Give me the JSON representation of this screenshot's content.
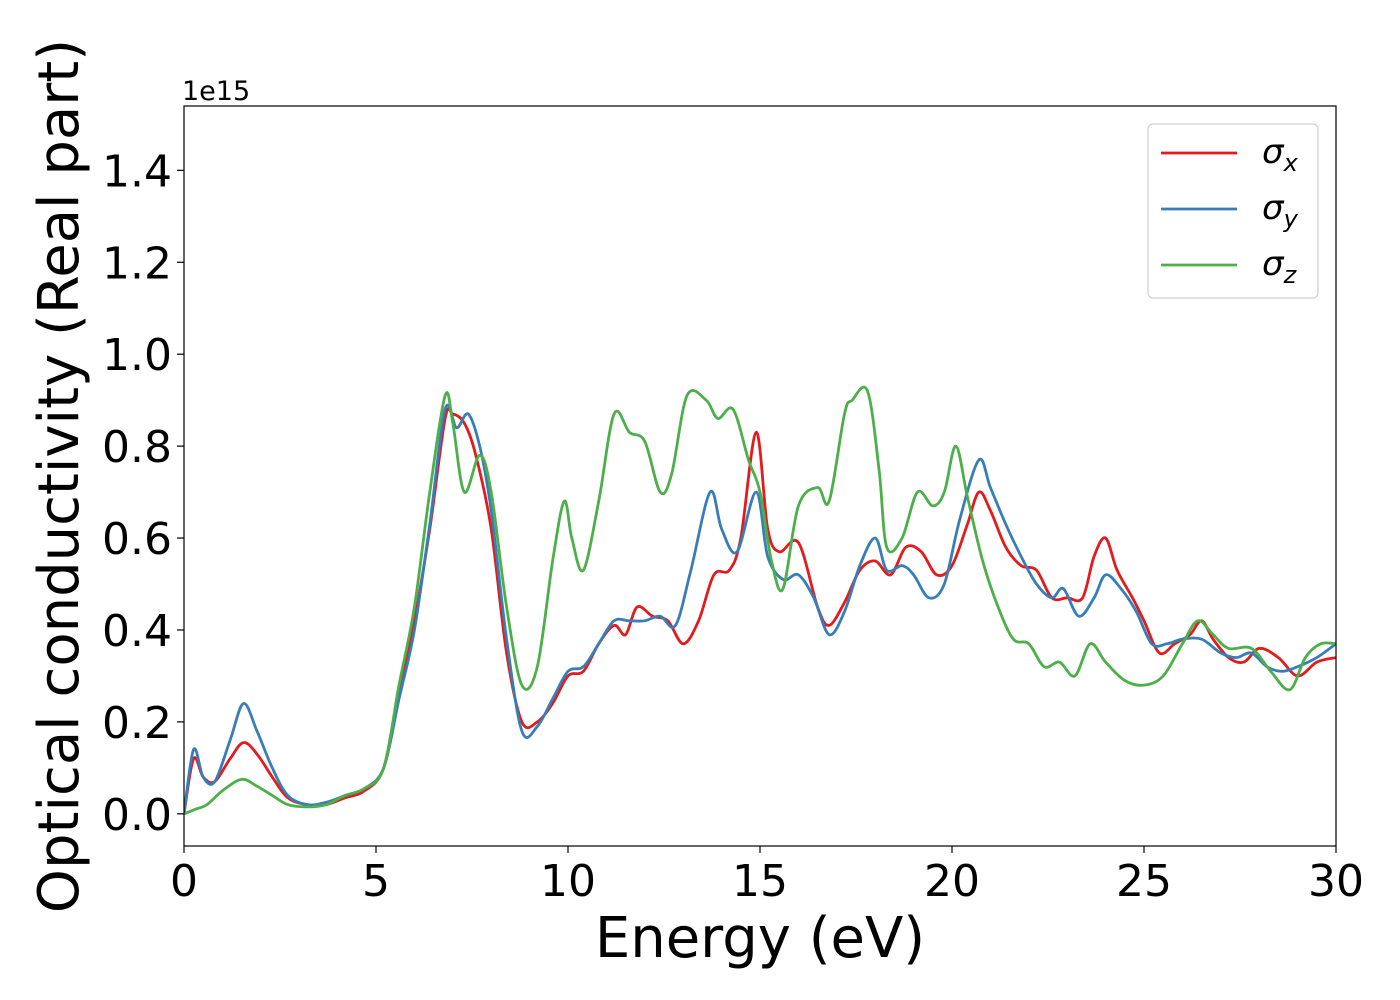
{
  "chart_data": {
    "type": "line",
    "title": "",
    "xlabel": "Energy (eV)",
    "ylabel": "Optical conductivity (Real part)",
    "y_offset_label": "1e15",
    "xlim": [
      0,
      30
    ],
    "ylim": [
      -0.07,
      1.54
    ],
    "x_ticks": [
      0,
      5,
      10,
      15,
      20,
      25,
      30
    ],
    "x_tick_labels": [
      "0",
      "5",
      "10",
      "15",
      "20",
      "25",
      "30"
    ],
    "y_ticks": [
      0.0,
      0.2,
      0.4,
      0.6,
      0.8,
      1.0,
      1.2,
      1.4
    ],
    "y_tick_labels": [
      "0.0",
      "0.2",
      "0.4",
      "0.6",
      "0.8",
      "1.0",
      "1.2",
      "1.4"
    ],
    "grid": false,
    "legend_position": "top-right",
    "series": [
      {
        "name": "σx",
        "legend_symbol": "σ",
        "legend_sub": "x",
        "color": "#e41a1c",
        "points": [
          [
            0,
            0
          ],
          [
            0.25,
            0.12
          ],
          [
            0.5,
            0.08
          ],
          [
            0.8,
            0.07
          ],
          [
            1.2,
            0.12
          ],
          [
            1.55,
            0.155
          ],
          [
            1.9,
            0.13
          ],
          [
            2.3,
            0.08
          ],
          [
            2.7,
            0.035
          ],
          [
            3.2,
            0.02
          ],
          [
            3.7,
            0.02
          ],
          [
            4.2,
            0.035
          ],
          [
            4.7,
            0.05
          ],
          [
            5.2,
            0.1
          ],
          [
            5.6,
            0.27
          ],
          [
            6.0,
            0.42
          ],
          [
            6.4,
            0.62
          ],
          [
            6.8,
            0.86
          ],
          [
            7.0,
            0.87
          ],
          [
            7.3,
            0.85
          ],
          [
            7.6,
            0.78
          ],
          [
            8.0,
            0.62
          ],
          [
            8.4,
            0.35
          ],
          [
            8.8,
            0.2
          ],
          [
            9.2,
            0.2
          ],
          [
            9.6,
            0.24
          ],
          [
            10.0,
            0.3
          ],
          [
            10.4,
            0.31
          ],
          [
            10.8,
            0.37
          ],
          [
            11.2,
            0.41
          ],
          [
            11.5,
            0.39
          ],
          [
            11.8,
            0.45
          ],
          [
            12.2,
            0.43
          ],
          [
            12.6,
            0.42
          ],
          [
            13.0,
            0.37
          ],
          [
            13.4,
            0.42
          ],
          [
            13.8,
            0.52
          ],
          [
            14.2,
            0.53
          ],
          [
            14.5,
            0.6
          ],
          [
            14.9,
            0.83
          ],
          [
            15.2,
            0.62
          ],
          [
            15.5,
            0.57
          ],
          [
            16.0,
            0.59
          ],
          [
            16.5,
            0.45
          ],
          [
            16.8,
            0.41
          ],
          [
            17.2,
            0.46
          ],
          [
            17.6,
            0.53
          ],
          [
            18.0,
            0.55
          ],
          [
            18.4,
            0.52
          ],
          [
            18.8,
            0.58
          ],
          [
            19.2,
            0.57
          ],
          [
            19.6,
            0.52
          ],
          [
            20.0,
            0.54
          ],
          [
            20.4,
            0.63
          ],
          [
            20.7,
            0.7
          ],
          [
            21.0,
            0.66
          ],
          [
            21.4,
            0.58
          ],
          [
            21.8,
            0.54
          ],
          [
            22.2,
            0.53
          ],
          [
            22.6,
            0.47
          ],
          [
            23.0,
            0.47
          ],
          [
            23.4,
            0.47
          ],
          [
            23.7,
            0.56
          ],
          [
            24.0,
            0.6
          ],
          [
            24.3,
            0.53
          ],
          [
            24.7,
            0.47
          ],
          [
            25.0,
            0.42
          ],
          [
            25.4,
            0.35
          ],
          [
            25.8,
            0.37
          ],
          [
            26.2,
            0.39
          ],
          [
            26.5,
            0.42
          ],
          [
            26.8,
            0.38
          ],
          [
            27.2,
            0.34
          ],
          [
            27.6,
            0.33
          ],
          [
            28.0,
            0.36
          ],
          [
            28.5,
            0.34
          ],
          [
            29.0,
            0.3
          ],
          [
            29.5,
            0.33
          ],
          [
            30.0,
            0.34
          ]
        ]
      },
      {
        "name": "σy",
        "legend_symbol": "σ",
        "legend_sub": "y",
        "color": "#377eb8",
        "points": [
          [
            0,
            0
          ],
          [
            0.25,
            0.14
          ],
          [
            0.5,
            0.08
          ],
          [
            0.8,
            0.07
          ],
          [
            1.2,
            0.16
          ],
          [
            1.55,
            0.24
          ],
          [
            1.9,
            0.18
          ],
          [
            2.3,
            0.1
          ],
          [
            2.7,
            0.04
          ],
          [
            3.2,
            0.02
          ],
          [
            3.7,
            0.025
          ],
          [
            4.2,
            0.04
          ],
          [
            4.7,
            0.055
          ],
          [
            5.2,
            0.1
          ],
          [
            5.6,
            0.25
          ],
          [
            6.0,
            0.4
          ],
          [
            6.4,
            0.63
          ],
          [
            6.8,
            0.88
          ],
          [
            7.1,
            0.84
          ],
          [
            7.4,
            0.87
          ],
          [
            7.7,
            0.8
          ],
          [
            8.0,
            0.66
          ],
          [
            8.4,
            0.38
          ],
          [
            8.8,
            0.18
          ],
          [
            9.2,
            0.19
          ],
          [
            9.6,
            0.25
          ],
          [
            10.0,
            0.31
          ],
          [
            10.4,
            0.32
          ],
          [
            10.8,
            0.37
          ],
          [
            11.2,
            0.42
          ],
          [
            11.6,
            0.42
          ],
          [
            12.0,
            0.42
          ],
          [
            12.4,
            0.43
          ],
          [
            12.8,
            0.41
          ],
          [
            13.2,
            0.53
          ],
          [
            13.7,
            0.7
          ],
          [
            14.0,
            0.62
          ],
          [
            14.4,
            0.57
          ],
          [
            14.9,
            0.7
          ],
          [
            15.2,
            0.56
          ],
          [
            15.6,
            0.51
          ],
          [
            16.0,
            0.52
          ],
          [
            16.4,
            0.47
          ],
          [
            16.8,
            0.39
          ],
          [
            17.2,
            0.44
          ],
          [
            17.6,
            0.54
          ],
          [
            18.0,
            0.6
          ],
          [
            18.3,
            0.53
          ],
          [
            18.7,
            0.54
          ],
          [
            19.0,
            0.52
          ],
          [
            19.4,
            0.47
          ],
          [
            19.8,
            0.5
          ],
          [
            20.2,
            0.64
          ],
          [
            20.7,
            0.77
          ],
          [
            21.0,
            0.71
          ],
          [
            21.4,
            0.63
          ],
          [
            21.8,
            0.56
          ],
          [
            22.2,
            0.5
          ],
          [
            22.6,
            0.47
          ],
          [
            22.9,
            0.49
          ],
          [
            23.3,
            0.43
          ],
          [
            23.7,
            0.47
          ],
          [
            24.0,
            0.52
          ],
          [
            24.4,
            0.49
          ],
          [
            24.8,
            0.44
          ],
          [
            25.2,
            0.37
          ],
          [
            25.6,
            0.37
          ],
          [
            26.0,
            0.38
          ],
          [
            26.5,
            0.38
          ],
          [
            27.0,
            0.35
          ],
          [
            27.4,
            0.34
          ],
          [
            27.8,
            0.35
          ],
          [
            28.2,
            0.32
          ],
          [
            28.6,
            0.31
          ],
          [
            29.0,
            0.32
          ],
          [
            29.5,
            0.34
          ],
          [
            30.0,
            0.37
          ]
        ]
      },
      {
        "name": "σz",
        "legend_symbol": "σ",
        "legend_sub": "z",
        "color": "#4daf4a",
        "points": [
          [
            0,
            0
          ],
          [
            0.3,
            0.01
          ],
          [
            0.6,
            0.02
          ],
          [
            1.0,
            0.05
          ],
          [
            1.5,
            0.075
          ],
          [
            1.9,
            0.06
          ],
          [
            2.3,
            0.04
          ],
          [
            2.7,
            0.02
          ],
          [
            3.2,
            0.015
          ],
          [
            3.7,
            0.02
          ],
          [
            4.2,
            0.04
          ],
          [
            4.7,
            0.055
          ],
          [
            5.2,
            0.1
          ],
          [
            5.6,
            0.28
          ],
          [
            6.0,
            0.45
          ],
          [
            6.4,
            0.7
          ],
          [
            6.8,
            0.91
          ],
          [
            7.0,
            0.85
          ],
          [
            7.3,
            0.7
          ],
          [
            7.7,
            0.78
          ],
          [
            8.0,
            0.7
          ],
          [
            8.4,
            0.45
          ],
          [
            8.8,
            0.28
          ],
          [
            9.2,
            0.32
          ],
          [
            9.6,
            0.55
          ],
          [
            9.9,
            0.68
          ],
          [
            10.1,
            0.6
          ],
          [
            10.4,
            0.53
          ],
          [
            10.8,
            0.68
          ],
          [
            11.2,
            0.87
          ],
          [
            11.6,
            0.83
          ],
          [
            12.0,
            0.81
          ],
          [
            12.4,
            0.7
          ],
          [
            12.7,
            0.74
          ],
          [
            13.1,
            0.91
          ],
          [
            13.6,
            0.9
          ],
          [
            13.9,
            0.86
          ],
          [
            14.3,
            0.88
          ],
          [
            14.7,
            0.77
          ],
          [
            15.0,
            0.7
          ],
          [
            15.3,
            0.55
          ],
          [
            15.6,
            0.49
          ],
          [
            16.0,
            0.67
          ],
          [
            16.5,
            0.71
          ],
          [
            16.8,
            0.68
          ],
          [
            17.2,
            0.87
          ],
          [
            17.4,
            0.9
          ],
          [
            17.8,
            0.92
          ],
          [
            18.1,
            0.75
          ],
          [
            18.3,
            0.58
          ],
          [
            18.7,
            0.6
          ],
          [
            19.1,
            0.7
          ],
          [
            19.5,
            0.67
          ],
          [
            19.8,
            0.7
          ],
          [
            20.1,
            0.8
          ],
          [
            20.4,
            0.69
          ],
          [
            20.8,
            0.55
          ],
          [
            21.2,
            0.45
          ],
          [
            21.6,
            0.38
          ],
          [
            22.0,
            0.37
          ],
          [
            22.4,
            0.32
          ],
          [
            22.8,
            0.33
          ],
          [
            23.2,
            0.3
          ],
          [
            23.6,
            0.37
          ],
          [
            24.0,
            0.33
          ],
          [
            24.5,
            0.29
          ],
          [
            25.0,
            0.28
          ],
          [
            25.5,
            0.3
          ],
          [
            26.0,
            0.37
          ],
          [
            26.4,
            0.42
          ],
          [
            26.8,
            0.39
          ],
          [
            27.2,
            0.36
          ],
          [
            27.8,
            0.36
          ],
          [
            28.3,
            0.31
          ],
          [
            28.8,
            0.27
          ],
          [
            29.2,
            0.34
          ],
          [
            29.6,
            0.37
          ],
          [
            30.0,
            0.37
          ]
        ]
      }
    ]
  }
}
